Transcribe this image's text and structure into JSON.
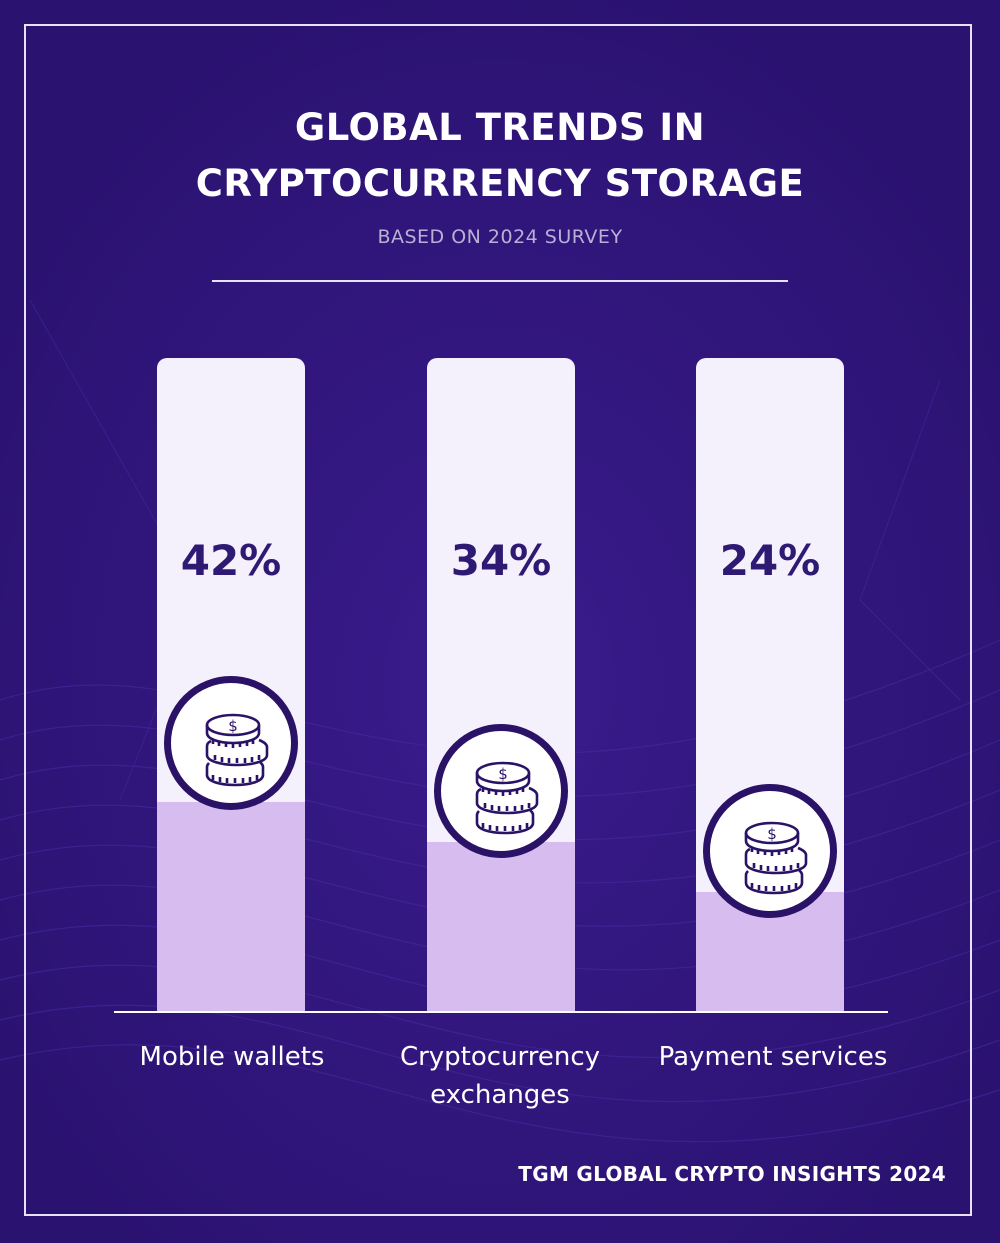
{
  "header": {
    "title_line1": "GLOBAL TRENDS IN",
    "title_line2": "CRYPTOCURRENCY STORAGE",
    "subtitle": "BASED ON 2024 SURVEY"
  },
  "chart_data": {
    "type": "bar",
    "categories": [
      "Mobile wallets",
      "Cryptocurrency exchanges",
      "Payment services"
    ],
    "category_lines": [
      [
        "Mobile wallets"
      ],
      [
        "Cryptocurrency",
        "exchanges"
      ],
      [
        "Payment services"
      ]
    ],
    "values": [
      42,
      34,
      24
    ],
    "value_labels": [
      "42%",
      "34%",
      "24%"
    ],
    "ylim": [
      0,
      100
    ],
    "icon": "coin-stack-icon"
  },
  "colors": {
    "background": "#2d1478",
    "bar_track": "#f4f0fc",
    "bar_fill": "#d7bcef",
    "value_text": "#2f1a73",
    "icon_ring": "#2a1266"
  },
  "footer": {
    "source": "TGM GLOBAL CRYPTO INSIGHTS 2024"
  }
}
